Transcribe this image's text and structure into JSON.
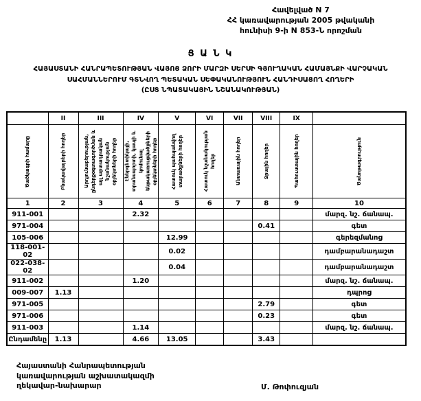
{
  "appendix": {
    "lines": [
      "Հավելված N 7",
      "ՀՀ կառավարության 2005 թվականի",
      "հունիսի 9-ի N 853-Ն որոշման"
    ]
  },
  "title": "Ց Ա Ն Կ",
  "subtitle": {
    "lines": [
      "ՀԱՅԱՍՏԱՆԻ ՀԱՆՐԱՊԵՏՈՒԹՅԱՆ ՎԱՅՈՑ ՁՈՐԻ ՄԱՐԶԻ ՍԵՐՍԻ ԳՅՈՒՂԱԿԱՆ ՀԱՄԱՅՆՔԻ ՎԱՐՉԱԿԱՆ",
      "ՍԱՀՄԱՆՆԵՐՈՒՄ ԳՏՆՎՈՂ ՊԵՏԱԿԱՆ ՍԵՓԱԿԱՆՈՒԹՅՈՒՆ ՀԱՆԴԻՍԱՑՈՂ ՀՈՂԵՐԻ",
      "(ԸՍՏ ՆՊԱՏԱԿԱՅԻՆ ՆՇԱՆԱԿՈՒԹՅԱՆ)"
    ]
  },
  "table": {
    "roman_numerals": [
      "II",
      "III",
      "IV",
      "V",
      "VI",
      "VII",
      "VIII",
      "IX"
    ],
    "column_headers": [
      "Ծածկագրի համարը",
      "Բնակավայրերի հողեր",
      "Արդյունաբերության, ընդերքօգտագործման և այլ արտադրական նշանակության օբյեկտների հողեր",
      "Էներգետիկայի, տրանսպորտի, կապի և կոմունալ ենթակառուցվածքների օբյեկտների հողեր",
      "Հատուկ պահպանվող տարածքների հողեր",
      "Հատուկ նշանակության հողեր",
      "Անտառային հողեր",
      "Ջրային հողեր",
      "Պահուստային հողեր",
      "Ծանոթագրություն"
    ],
    "column_numbers": [
      "1",
      "2",
      "3",
      "4",
      "5",
      "6",
      "7",
      "8",
      "9",
      "10"
    ],
    "rows": [
      [
        "911-001",
        "",
        "",
        "2.32",
        "",
        "",
        "",
        "",
        "",
        "մարզ. նշ. ճանապ."
      ],
      [
        "971-004",
        "",
        "",
        "",
        "",
        "",
        "",
        "0.41",
        "",
        "գետ"
      ],
      [
        "105-006",
        "",
        "",
        "",
        "12.99",
        "",
        "",
        "",
        "",
        "գերեզմանոց"
      ],
      [
        "118-001-02",
        "",
        "",
        "",
        "0.02",
        "",
        "",
        "",
        "",
        "դամբարանադաշտ"
      ],
      [
        "022-038-02",
        "",
        "",
        "",
        "0.04",
        "",
        "",
        "",
        "",
        "դամբարանադաշտ"
      ],
      [
        "911-002",
        "",
        "",
        "1.20",
        "",
        "",
        "",
        "",
        "",
        "մարզ. նշ. ճանապ."
      ],
      [
        "009-007",
        "1.13",
        "",
        "",
        "",
        "",
        "",
        "",
        "",
        "դպրոց"
      ],
      [
        "971-005",
        "",
        "",
        "",
        "",
        "",
        "",
        "2.79",
        "",
        "գետ"
      ],
      [
        "971-006",
        "",
        "",
        "",
        "",
        "",
        "",
        "0.23",
        "",
        "գետ"
      ],
      [
        "911-003",
        "",
        "",
        "1.14",
        "",
        "",
        "",
        "",
        "",
        "մարզ. նշ. ճանապ."
      ],
      [
        "Ընդամենը",
        "1.13",
        "",
        "4.66",
        "13.05",
        "",
        "",
        "3.43",
        "",
        ""
      ]
    ]
  },
  "signature": {
    "left_lines": [
      "Հայաստանի Հանրապետության",
      "կառավարության աշխատակազմի",
      "ղեկավար-նախարար"
    ],
    "name": "Մ. Թոփուզյան"
  }
}
